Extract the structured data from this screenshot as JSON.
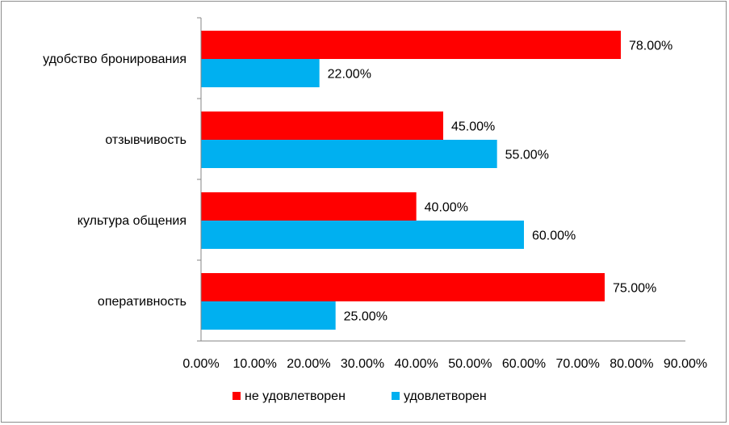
{
  "chart_data": {
    "type": "bar",
    "orientation": "horizontal",
    "categories": [
      "удобство бронирования",
      "отзывчивость",
      "культура общения",
      "оперативность"
    ],
    "series": [
      {
        "name": "не удовлетворен",
        "color": "#ff0000",
        "values": [
          78.0,
          45.0,
          40.0,
          75.0
        ]
      },
      {
        "name": "удовлетворен",
        "color": "#00b0f0",
        "values": [
          22.0,
          55.0,
          60.0,
          25.0
        ]
      }
    ],
    "value_labels": [
      [
        "78.00%",
        "45.00%",
        "40.00%",
        "75.00%"
      ],
      [
        "22.00%",
        "55.00%",
        "60.00%",
        "25.00%"
      ]
    ],
    "xlim": [
      0,
      90
    ],
    "x_ticks": [
      "0.00%",
      "10.00%",
      "20.00%",
      "30.00%",
      "40.00%",
      "50.00%",
      "60.00%",
      "70.00%",
      "80.00%",
      "90.00%"
    ],
    "grid": false,
    "legend_position": "bottom"
  }
}
